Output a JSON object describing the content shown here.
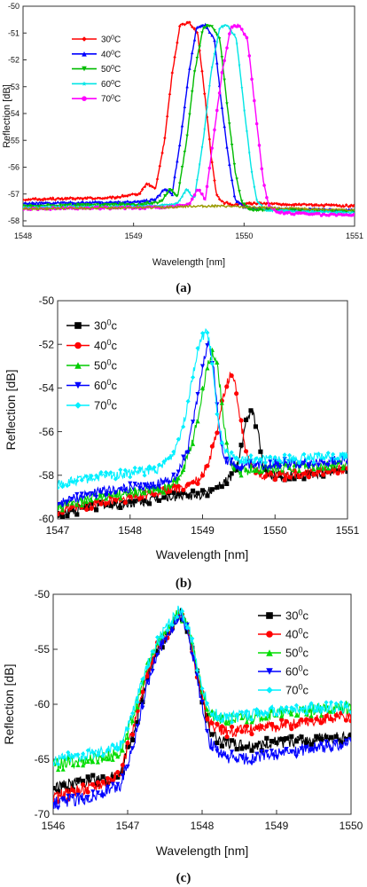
{
  "chart_data": [
    {
      "type": "line",
      "panel_label": "(a)",
      "xlabel": "Wavelength [nm]",
      "ylabel": "Reflection [dB]",
      "xlim": [
        1548,
        1551
      ],
      "ylim": [
        -58.2,
        -50
      ],
      "xticks": [
        1548,
        1549,
        1550,
        1551
      ],
      "yticks": [
        -50,
        -51,
        -52,
        -53,
        -54,
        -55,
        -56,
        -57,
        -58
      ],
      "grid": false,
      "legend_position": "top-left",
      "series": [
        {
          "name": "30°C",
          "color": "#ff0000",
          "marker": "diamond",
          "x": [
            1548,
            1548.8,
            1549.05,
            1549.12,
            1549.2,
            1549.28,
            1549.35,
            1549.42,
            1549.5,
            1549.58,
            1549.65,
            1549.7,
            1549.75,
            1549.8,
            1549.9,
            1550.1,
            1550.5,
            1551
          ],
          "y": [
            -57.2,
            -57.15,
            -57.0,
            -56.6,
            -56.8,
            -55.0,
            -52.5,
            -50.7,
            -50.6,
            -51.0,
            -53.5,
            -55.5,
            -57.0,
            -57.3,
            -57.4,
            -57.35,
            -57.4,
            -57.45
          ]
        },
        {
          "name": "40°C",
          "color": "#0000ff",
          "marker": "triangle-up",
          "x": [
            1548,
            1549.0,
            1549.2,
            1549.28,
            1549.35,
            1549.43,
            1549.5,
            1549.57,
            1549.65,
            1549.73,
            1549.8,
            1549.87,
            1549.92,
            1550.0,
            1550.3,
            1551
          ],
          "y": [
            -57.35,
            -57.3,
            -57.2,
            -56.8,
            -57.0,
            -54.8,
            -52.5,
            -50.8,
            -50.7,
            -51.2,
            -53.8,
            -56.0,
            -57.2,
            -57.5,
            -57.55,
            -57.6
          ]
        },
        {
          "name": "50°C",
          "color": "#00bb00",
          "marker": "triangle-down",
          "x": [
            1548,
            1549.05,
            1549.25,
            1549.33,
            1549.4,
            1549.48,
            1549.55,
            1549.63,
            1549.7,
            1549.78,
            1549.85,
            1549.92,
            1549.98,
            1550.05,
            1550.3,
            1551
          ],
          "y": [
            -57.45,
            -57.4,
            -57.3,
            -56.8,
            -57.1,
            -55.0,
            -52.5,
            -50.8,
            -50.7,
            -51.2,
            -53.8,
            -56.2,
            -57.3,
            -57.6,
            -57.6,
            -57.65
          ]
        },
        {
          "name": "60°C",
          "color": "#00e5e5",
          "marker": "star",
          "x": [
            1548,
            1549.2,
            1549.4,
            1549.48,
            1549.55,
            1549.63,
            1549.7,
            1549.78,
            1549.85,
            1549.93,
            1550.0,
            1550.07,
            1550.12,
            1550.2,
            1550.5,
            1551
          ],
          "y": [
            -57.5,
            -57.45,
            -57.35,
            -56.8,
            -57.2,
            -55.0,
            -52.5,
            -50.8,
            -50.7,
            -51.2,
            -53.8,
            -56.2,
            -57.3,
            -57.6,
            -57.65,
            -57.7
          ]
        },
        {
          "name": "70°C",
          "color": "#ff00ff",
          "marker": "circle",
          "x": [
            1548,
            1549.3,
            1549.5,
            1549.58,
            1549.65,
            1549.72,
            1549.8,
            1549.88,
            1549.95,
            1550.03,
            1550.1,
            1550.17,
            1550.22,
            1550.3,
            1550.6,
            1551
          ],
          "y": [
            -57.55,
            -57.5,
            -57.4,
            -56.8,
            -57.2,
            -55.0,
            -52.5,
            -50.8,
            -50.7,
            -51.2,
            -53.8,
            -56.4,
            -57.4,
            -57.7,
            -57.75,
            -57.8
          ]
        },
        {
          "name": "",
          "color": "#999900",
          "marker": "none",
          "x": [
            1548,
            1549.3,
            1549.5,
            1549.8,
            1550.1,
            1550.5,
            1551
          ],
          "y": [
            -57.55,
            -57.5,
            -57.45,
            -57.45,
            -57.5,
            -57.55,
            -57.6
          ]
        }
      ]
    },
    {
      "type": "line",
      "panel_label": "(b)",
      "xlabel": "Wavelength [nm]",
      "ylabel": "Reflection [dB]",
      "xlim": [
        1547,
        1551
      ],
      "ylim": [
        -60,
        -50
      ],
      "xticks": [
        1547,
        1548,
        1549,
        1550,
        1551
      ],
      "yticks": [
        -50,
        -52,
        -54,
        -56,
        -58,
        -60
      ],
      "grid": false,
      "legend_position": "top-left",
      "series": [
        {
          "name": "30°c",
          "color": "#000000",
          "marker": "square",
          "x": [
            1547,
            1547.5,
            1548.0,
            1548.5,
            1549.0,
            1549.2,
            1549.35,
            1549.45,
            1549.55,
            1549.62,
            1549.7,
            1549.78,
            1549.85,
            1549.95,
            1550.2,
            1550.6,
            1551
          ],
          "y": [
            -59.8,
            -59.4,
            -59.3,
            -59.0,
            -58.9,
            -58.5,
            -58.2,
            -57.8,
            -56.5,
            -55.3,
            -55.2,
            -56.3,
            -57.8,
            -58.0,
            -58.0,
            -57.9,
            -57.7
          ]
        },
        {
          "name": "40°c",
          "color": "#ff0000",
          "marker": "circle",
          "x": [
            1547,
            1547.5,
            1548.0,
            1548.5,
            1548.8,
            1549.0,
            1549.1,
            1549.2,
            1549.3,
            1549.38,
            1549.45,
            1549.55,
            1549.65,
            1549.8,
            1550.2,
            1551
          ],
          "y": [
            -59.6,
            -59.3,
            -59.1,
            -58.7,
            -58.5,
            -58.0,
            -57.2,
            -55.9,
            -54.2,
            -53.4,
            -53.9,
            -56.0,
            -57.6,
            -58.0,
            -58.0,
            -57.7
          ]
        },
        {
          "name": "50°c",
          "color": "#00cc00",
          "marker": "triangle-up",
          "x": [
            1547,
            1547.5,
            1548.0,
            1548.5,
            1548.7,
            1548.85,
            1548.95,
            1549.05,
            1549.15,
            1549.22,
            1549.3,
            1549.38,
            1549.5,
            1550.0,
            1550.5,
            1551
          ],
          "y": [
            -59.5,
            -59.0,
            -58.8,
            -58.6,
            -58.1,
            -56.6,
            -55.2,
            -53.2,
            -52.3,
            -53.3,
            -55.8,
            -57.5,
            -57.8,
            -57.7,
            -57.6,
            -57.5
          ]
        },
        {
          "name": "60°c",
          "color": "#0000ff",
          "marker": "triangle-down",
          "x": [
            1547,
            1547.5,
            1548.0,
            1548.4,
            1548.65,
            1548.8,
            1548.9,
            1549.0,
            1549.08,
            1549.15,
            1549.22,
            1549.3,
            1549.5,
            1550.0,
            1550.5,
            1551
          ],
          "y": [
            -59.3,
            -58.8,
            -58.6,
            -58.4,
            -58.0,
            -56.8,
            -55.0,
            -53.0,
            -51.9,
            -53.0,
            -55.6,
            -57.3,
            -57.6,
            -57.5,
            -57.4,
            -57.3
          ]
        },
        {
          "name": "70°c",
          "color": "#00f0ff",
          "marker": "diamond",
          "x": [
            1547,
            1547.5,
            1548.0,
            1548.4,
            1548.6,
            1548.75,
            1548.85,
            1548.95,
            1549.05,
            1549.12,
            1549.2,
            1549.3,
            1549.5,
            1550.0,
            1550.5,
            1551
          ],
          "y": [
            -58.4,
            -58.1,
            -57.9,
            -57.7,
            -57.0,
            -55.5,
            -53.6,
            -52.1,
            -51.3,
            -52.4,
            -55.2,
            -57.0,
            -57.3,
            -57.3,
            -57.2,
            -57.1
          ]
        }
      ]
    },
    {
      "type": "line",
      "panel_label": "(c)",
      "xlabel": "Wavelength [nm]",
      "ylabel": "Reflection [dB]",
      "xlim": [
        1546,
        1550
      ],
      "ylim": [
        -70,
        -50
      ],
      "xticks": [
        1546,
        1547,
        1548,
        1549,
        1550
      ],
      "yticks": [
        -50,
        -55,
        -60,
        -65,
        -70
      ],
      "grid": false,
      "legend_position": "top-right",
      "series": [
        {
          "name": "30°c",
          "color": "#000000",
          "marker": "square",
          "x": [
            1546,
            1546.5,
            1546.9,
            1547.1,
            1547.25,
            1547.4,
            1547.55,
            1547.7,
            1547.82,
            1547.95,
            1548.1,
            1548.3,
            1548.6,
            1549.0,
            1549.5,
            1550
          ],
          "y": [
            -67.5,
            -67.0,
            -66.5,
            -62.0,
            -58.0,
            -55.0,
            -53.5,
            -51.6,
            -53.5,
            -58.0,
            -62.5,
            -63.5,
            -63.8,
            -63.5,
            -63.2,
            -63.0
          ]
        },
        {
          "name": "40°c",
          "color": "#ff0000",
          "marker": "circle",
          "x": [
            1546,
            1546.5,
            1546.9,
            1547.1,
            1547.25,
            1547.4,
            1547.55,
            1547.7,
            1547.82,
            1547.95,
            1548.1,
            1548.3,
            1548.6,
            1549.0,
            1549.5,
            1550
          ],
          "y": [
            -68.5,
            -67.5,
            -66.5,
            -61.5,
            -57.5,
            -54.8,
            -53.3,
            -51.5,
            -53.4,
            -57.8,
            -61.8,
            -62.5,
            -62.3,
            -62.0,
            -61.5,
            -61.0
          ]
        },
        {
          "name": "50°c",
          "color": "#00dd00",
          "marker": "triangle-up",
          "x": [
            1546,
            1546.5,
            1546.9,
            1547.1,
            1547.25,
            1547.4,
            1547.55,
            1547.7,
            1547.82,
            1547.95,
            1548.1,
            1548.3,
            1548.6,
            1549.0,
            1549.5,
            1550
          ],
          "y": [
            -65.5,
            -65.0,
            -64.5,
            -60.5,
            -57.0,
            -54.5,
            -53.0,
            -51.4,
            -53.2,
            -57.3,
            -61.0,
            -61.5,
            -61.2,
            -60.8,
            -60.5,
            -60.3
          ]
        },
        {
          "name": "60°c",
          "color": "#0000ff",
          "marker": "triangle-down",
          "x": [
            1546,
            1546.5,
            1546.9,
            1547.1,
            1547.25,
            1547.4,
            1547.55,
            1547.7,
            1547.82,
            1547.95,
            1548.1,
            1548.3,
            1548.6,
            1549.0,
            1549.5,
            1550
          ],
          "y": [
            -69.0,
            -68.5,
            -67.5,
            -63.0,
            -58.5,
            -55.2,
            -53.6,
            -51.7,
            -53.6,
            -58.3,
            -63.5,
            -64.8,
            -65.0,
            -64.5,
            -64.0,
            -63.5
          ]
        },
        {
          "name": "70°c",
          "color": "#00f0ff",
          "marker": "diamond",
          "x": [
            1546,
            1546.5,
            1546.9,
            1547.1,
            1547.25,
            1547.4,
            1547.55,
            1547.7,
            1547.82,
            1547.95,
            1548.1,
            1548.3,
            1548.6,
            1549.0,
            1549.5,
            1550
          ],
          "y": [
            -65.0,
            -64.5,
            -63.8,
            -60.0,
            -56.7,
            -54.3,
            -52.8,
            -51.3,
            -53.0,
            -57.0,
            -60.8,
            -61.2,
            -61.0,
            -60.6,
            -60.4,
            -60.2
          ]
        }
      ]
    }
  ]
}
